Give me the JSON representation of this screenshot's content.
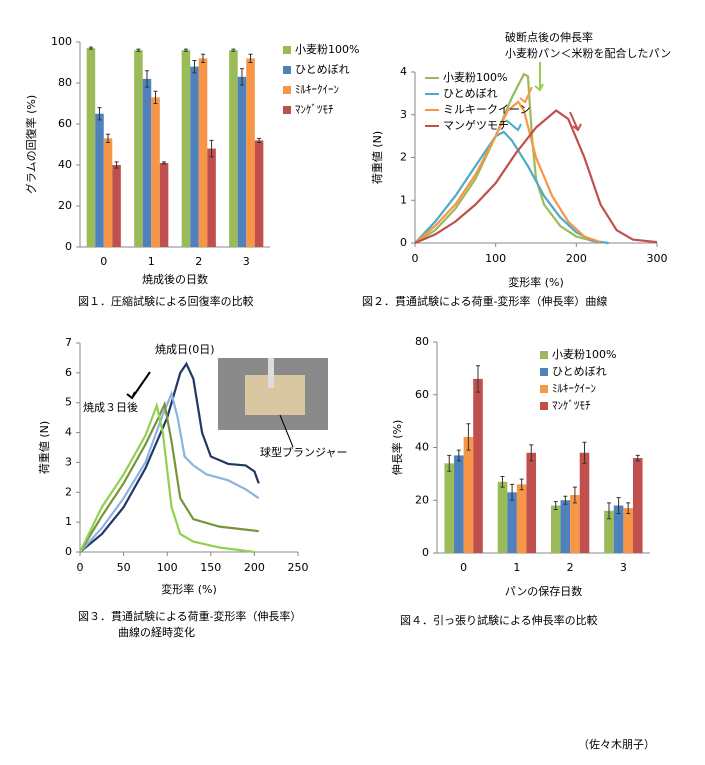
{
  "chart_data": [
    {
      "type": "bar",
      "ylabel": "グラムの回復率 (%)",
      "xlabel": "焼成後の日数",
      "categories": [
        "0",
        "1",
        "2",
        "3"
      ],
      "ylim": [
        0,
        100
      ],
      "yticks": [
        0,
        20,
        40,
        60,
        80,
        100
      ],
      "series": [
        {
          "name": "小麦粉100%",
          "color": "#9bbb59",
          "values": [
            97,
            96,
            96,
            96
          ],
          "error": [
            0.5,
            0.5,
            0.5,
            0.5
          ]
        },
        {
          "name": "ひとめぼれ",
          "color": "#4f81bd",
          "values": [
            65,
            82,
            88,
            83
          ],
          "error": [
            3,
            4,
            3,
            4
          ]
        },
        {
          "name": "ﾐﾙｷｰｸｲｰﾝ",
          "color": "#f79646",
          "values": [
            53,
            73,
            92,
            92
          ],
          "error": [
            2,
            3,
            2,
            2
          ]
        },
        {
          "name": "ﾏﾝｹﾞﾂﾓﾁ",
          "color": "#c0504d",
          "values": [
            40,
            41,
            48,
            52
          ],
          "error": [
            1.5,
            0.5,
            4,
            1
          ]
        }
      ],
      "caption": [
        "図１．圧縮試験による回復率の比較"
      ]
    },
    {
      "type": "line",
      "ylabel": "荷重値 (N)",
      "xlabel": "変形率 (%)",
      "xlim": [
        0,
        300
      ],
      "xticks": [
        0,
        100,
        200,
        300
      ],
      "ylim": [
        0,
        4
      ],
      "yticks": [
        0,
        1,
        2,
        3,
        4
      ],
      "annotations": [
        "破断点後の伸長率",
        "小麦粉パン＜米粉を配合したパン"
      ],
      "series": [
        {
          "name": "小麦粉100%",
          "color": "#9bbb59",
          "x": [
            0,
            25,
            50,
            75,
            100,
            120,
            135,
            140,
            145,
            150,
            160,
            180,
            200,
            220
          ],
          "values": [
            0,
            0.3,
            0.8,
            1.5,
            2.5,
            3.4,
            3.95,
            3.9,
            2.5,
            1.5,
            0.9,
            0.4,
            0.15,
            0.05
          ]
        },
        {
          "name": "ひとめぼれ",
          "color": "#4bacc6",
          "x": [
            0,
            25,
            50,
            75,
            100,
            110,
            120,
            140,
            160,
            180,
            200,
            220,
            240
          ],
          "values": [
            0,
            0.5,
            1.1,
            1.8,
            2.5,
            2.6,
            2.4,
            1.8,
            1.1,
            0.6,
            0.25,
            0.05,
            0
          ]
        },
        {
          "name": "ミルキークイーン",
          "color": "#f79646",
          "x": [
            0,
            25,
            50,
            75,
            100,
            115,
            128,
            135,
            150,
            170,
            190,
            210,
            230
          ],
          "values": [
            0,
            0.4,
            0.9,
            1.6,
            2.5,
            3.1,
            3.3,
            3.1,
            2.0,
            1.1,
            0.5,
            0.15,
            0.02
          ]
        },
        {
          "name": "マンゲツモチ",
          "color": "#c0504d",
          "x": [
            0,
            25,
            50,
            75,
            100,
            125,
            150,
            175,
            190,
            210,
            230,
            250,
            270,
            300
          ],
          "values": [
            0,
            0.2,
            0.5,
            0.9,
            1.4,
            2.1,
            2.7,
            3.1,
            2.9,
            2.0,
            0.9,
            0.3,
            0.08,
            0.02
          ]
        }
      ],
      "caption": [
        "図２．貫通試験による荷重-変形率（伸長率）曲線"
      ]
    },
    {
      "type": "line",
      "ylabel": "荷重値 (N)",
      "xlabel": "変形率 (%)",
      "xlim": [
        0,
        250
      ],
      "xticks": [
        0,
        50,
        100,
        150,
        200,
        250
      ],
      "ylim": [
        0,
        7
      ],
      "yticks": [
        0,
        1,
        2,
        3,
        4,
        5,
        6,
        7
      ],
      "annotations": [
        "焼成日(0日)",
        "焼成３日後",
        "球型プランジャー"
      ],
      "series": [
        {
          "color": "#1f3864",
          "x": [
            0,
            25,
            50,
            75,
            100,
            115,
            122,
            130,
            140,
            150,
            170,
            190,
            200,
            205
          ],
          "values": [
            0,
            0.6,
            1.5,
            2.8,
            4.5,
            6,
            6.3,
            5.8,
            4,
            3.2,
            2.95,
            2.9,
            2.7,
            2.3
          ]
        },
        {
          "color": "#8db3e2",
          "x": [
            0,
            25,
            50,
            75,
            95,
            105,
            112,
            120,
            130,
            145,
            170,
            190,
            205
          ],
          "values": [
            0,
            0.8,
            1.8,
            3.0,
            4.6,
            5.3,
            4.5,
            3.2,
            2.9,
            2.6,
            2.4,
            2.1,
            1.8
          ]
        },
        {
          "color": "#77933c",
          "x": [
            0,
            25,
            50,
            75,
            90,
            97,
            105,
            115,
            130,
            160,
            190,
            205
          ],
          "values": [
            0,
            1.2,
            2.3,
            3.6,
            4.5,
            4.95,
            3.7,
            1.8,
            1.1,
            0.85,
            0.75,
            0.7
          ]
        },
        {
          "color": "#92d050",
          "x": [
            0,
            25,
            50,
            75,
            88,
            95,
            105,
            115,
            130,
            160,
            200
          ],
          "values": [
            0,
            1.5,
            2.6,
            3.9,
            4.9,
            4.0,
            1.5,
            0.6,
            0.35,
            0.15,
            0
          ]
        }
      ],
      "caption": [
        "図３．貫通試験による荷重-変形率（伸長率）",
        "曲線の経時変化"
      ]
    },
    {
      "type": "bar",
      "ylabel": "伸長率 (%)",
      "xlabel": "パンの保存日数",
      "categories": [
        "0",
        "1",
        "2",
        "3"
      ],
      "ylim": [
        0,
        80
      ],
      "yticks": [
        0,
        20,
        40,
        60,
        80
      ],
      "series": [
        {
          "name": "小麦粉100%",
          "color": "#9bbb59",
          "values": [
            34,
            27,
            18,
            16
          ],
          "error": [
            3,
            2,
            1.5,
            3
          ]
        },
        {
          "name": "ひとめぼれ",
          "color": "#4f81bd",
          "values": [
            37,
            23,
            20,
            18
          ],
          "error": [
            2,
            3,
            1.5,
            3
          ]
        },
        {
          "name": "ﾐﾙｷｰｸｲｰﾝ",
          "color": "#f79646",
          "values": [
            44,
            26,
            22,
            17
          ],
          "error": [
            5,
            2,
            3,
            2
          ]
        },
        {
          "name": "ﾏﾝｹﾞﾂﾓﾁ",
          "color": "#c0504d",
          "values": [
            66,
            38,
            38,
            36
          ],
          "error": [
            5,
            3,
            4,
            1
          ]
        }
      ],
      "caption": [
        "図４．引っ張り試験による伸長率の比較"
      ]
    }
  ],
  "author": "（佐々木朋子）"
}
